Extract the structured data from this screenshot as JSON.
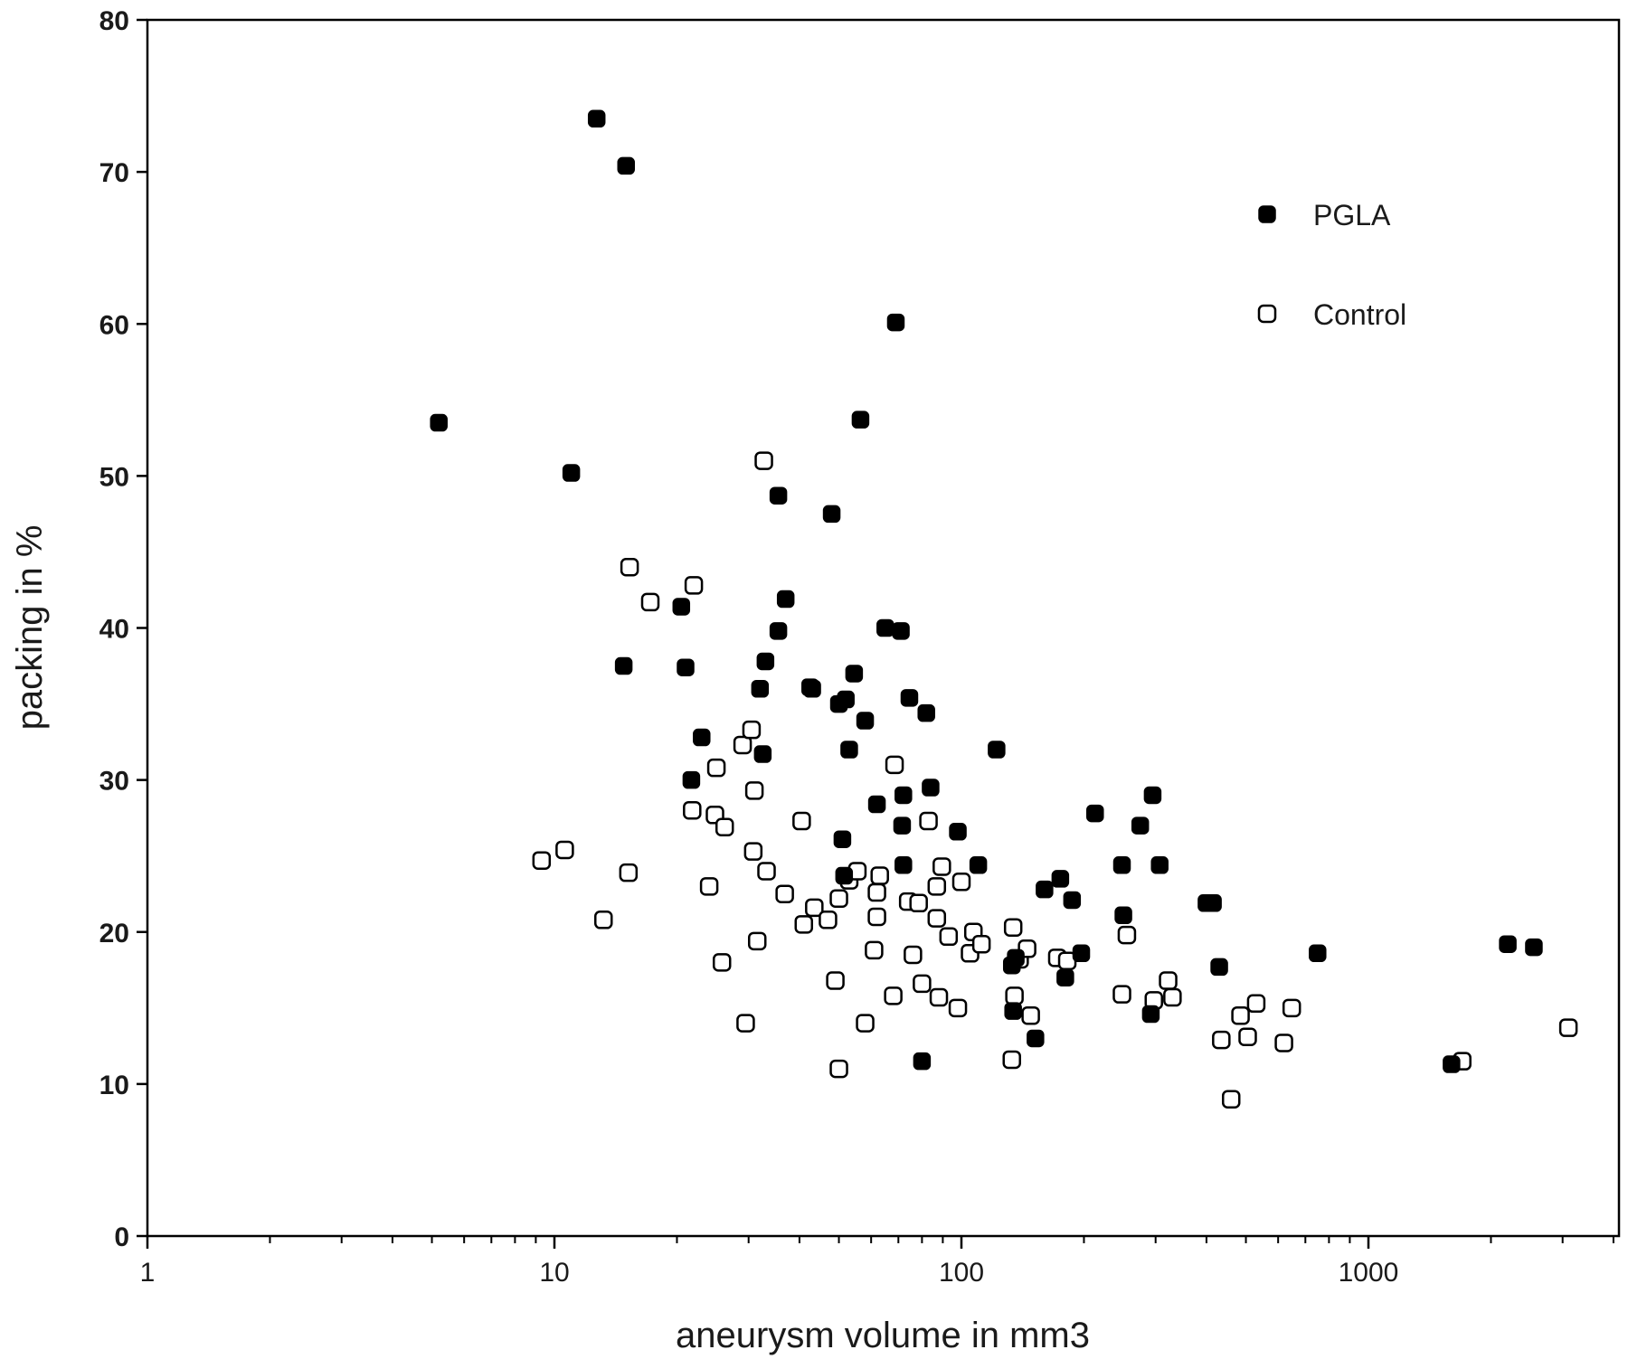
{
  "chart_data": {
    "type": "scatter",
    "title": "",
    "xlabel": "aneurysm volume in mm3",
    "ylabel": "packing in %",
    "x_scale": "log",
    "xlim": [
      1,
      4000
    ],
    "ylim": [
      0,
      80
    ],
    "x_ticks": [
      1,
      10,
      100,
      1000
    ],
    "x_tick_labels": [
      "1",
      "10",
      "100",
      "1000"
    ],
    "y_ticks": [
      0,
      10,
      20,
      30,
      40,
      50,
      60,
      70,
      80
    ],
    "y_tick_labels": [
      "0",
      "10",
      "20",
      "30",
      "40",
      "50",
      "60",
      "70",
      "80"
    ],
    "grid": false,
    "legend_position": "top-right",
    "series": [
      {
        "name": "PGLA",
        "marker": "filled-square",
        "color": "#000000",
        "points": [
          [
            5.2,
            53.5
          ],
          [
            11.0,
            50.2
          ],
          [
            12.7,
            73.5
          ],
          [
            15.0,
            70.4
          ],
          [
            14.8,
            37.5
          ],
          [
            20.5,
            41.4
          ],
          [
            21.0,
            37.4
          ],
          [
            21.7,
            30.0
          ],
          [
            23.0,
            32.8
          ],
          [
            32.0,
            36.0
          ],
          [
            33.0,
            37.8
          ],
          [
            32.5,
            31.7
          ],
          [
            35.5,
            48.7
          ],
          [
            35.5,
            39.8
          ],
          [
            37.0,
            41.9
          ],
          [
            42.5,
            36.1
          ],
          [
            43.0,
            36.0
          ],
          [
            48.0,
            47.5
          ],
          [
            50.0,
            35.0
          ],
          [
            51.0,
            26.1
          ],
          [
            51.5,
            23.7
          ],
          [
            52.0,
            35.3
          ],
          [
            53.0,
            32.0
          ],
          [
            54.5,
            37.0
          ],
          [
            56.5,
            53.7
          ],
          [
            58.0,
            33.9
          ],
          [
            62.0,
            28.4
          ],
          [
            65.0,
            40.0
          ],
          [
            69.0,
            60.1
          ],
          [
            71.0,
            39.8
          ],
          [
            72.0,
            29.0
          ],
          [
            71.5,
            27.0
          ],
          [
            72.0,
            24.4
          ],
          [
            74.5,
            35.4
          ],
          [
            82.0,
            34.4
          ],
          [
            84.0,
            29.5
          ],
          [
            80.0,
            11.5
          ],
          [
            98.0,
            26.6
          ],
          [
            110.0,
            24.4
          ],
          [
            122.0,
            32.0
          ],
          [
            133.0,
            17.8
          ],
          [
            136.0,
            18.3
          ],
          [
            134.0,
            14.8
          ],
          [
            152.0,
            13.0
          ],
          [
            160.0,
            22.8
          ],
          [
            175.0,
            23.5
          ],
          [
            180.0,
            17.0
          ],
          [
            187.0,
            22.1
          ],
          [
            197.0,
            18.6
          ],
          [
            213.0,
            27.8
          ],
          [
            248.0,
            24.4
          ],
          [
            250.0,
            21.1
          ],
          [
            275.0,
            27.0
          ],
          [
            295.0,
            29.0
          ],
          [
            292.0,
            14.6
          ],
          [
            307.0,
            24.4
          ],
          [
            400.0,
            21.9
          ],
          [
            415.0,
            21.9
          ],
          [
            430.0,
            17.7
          ],
          [
            750.0,
            18.6
          ],
          [
            1600.0,
            11.3
          ],
          [
            2200.0,
            19.2
          ],
          [
            2550.0,
            19.0
          ]
        ]
      },
      {
        "name": "Control",
        "marker": "open-square",
        "color": "#000000",
        "points": [
          [
            9.3,
            24.7
          ],
          [
            10.6,
            25.4
          ],
          [
            13.2,
            20.8
          ],
          [
            15.3,
            44.0
          ],
          [
            15.2,
            23.9
          ],
          [
            17.2,
            41.7
          ],
          [
            22.0,
            42.8
          ],
          [
            21.8,
            28.0
          ],
          [
            24.0,
            23.0
          ],
          [
            25.0,
            30.8
          ],
          [
            24.8,
            27.7
          ],
          [
            25.8,
            18.0
          ],
          [
            26.2,
            26.9
          ],
          [
            29.0,
            32.3
          ],
          [
            29.5,
            14.0
          ],
          [
            30.5,
            33.3
          ],
          [
            31.0,
            29.3
          ],
          [
            30.8,
            25.3
          ],
          [
            31.5,
            19.4
          ],
          [
            32.7,
            51.0
          ],
          [
            33.2,
            24.0
          ],
          [
            36.8,
            22.5
          ],
          [
            40.5,
            27.3
          ],
          [
            41.0,
            20.5
          ],
          [
            43.5,
            21.6
          ],
          [
            47.0,
            20.8
          ],
          [
            49.0,
            16.8
          ],
          [
            50.0,
            11.0
          ],
          [
            50.0,
            22.2
          ],
          [
            53.0,
            23.4
          ],
          [
            55.5,
            24.0
          ],
          [
            58.0,
            14.0
          ],
          [
            61.0,
            18.8
          ],
          [
            62.0,
            22.6
          ],
          [
            62.0,
            21.0
          ],
          [
            63.0,
            23.7
          ],
          [
            68.0,
            15.8
          ],
          [
            68.5,
            31.0
          ],
          [
            74.0,
            22.0
          ],
          [
            76.0,
            18.5
          ],
          [
            78.5,
            21.9
          ],
          [
            80.0,
            16.6
          ],
          [
            83.0,
            27.3
          ],
          [
            87.0,
            20.9
          ],
          [
            87.0,
            23.0
          ],
          [
            88.0,
            15.7
          ],
          [
            89.5,
            24.3
          ],
          [
            93.0,
            19.7
          ],
          [
            98.0,
            15.0
          ],
          [
            100.0,
            23.3
          ],
          [
            105.0,
            18.6
          ],
          [
            107.0,
            20.0
          ],
          [
            112.0,
            19.2
          ],
          [
            133.0,
            11.6
          ],
          [
            134.0,
            20.3
          ],
          [
            135.0,
            15.8
          ],
          [
            139.0,
            18.2
          ],
          [
            145.0,
            18.9
          ],
          [
            148.0,
            14.5
          ],
          [
            172.0,
            18.3
          ],
          [
            182.0,
            18.1
          ],
          [
            248.0,
            15.9
          ],
          [
            255.0,
            19.8
          ],
          [
            297.0,
            15.5
          ],
          [
            322.0,
            16.8
          ],
          [
            330.0,
            15.7
          ],
          [
            435.0,
            12.9
          ],
          [
            460.0,
            9.0
          ],
          [
            485.0,
            14.5
          ],
          [
            505.0,
            13.1
          ],
          [
            530.0,
            15.3
          ],
          [
            620.0,
            12.7
          ],
          [
            648.0,
            15.0
          ],
          [
            1700.0,
            11.5
          ],
          [
            3100.0,
            13.7
          ]
        ]
      }
    ]
  }
}
